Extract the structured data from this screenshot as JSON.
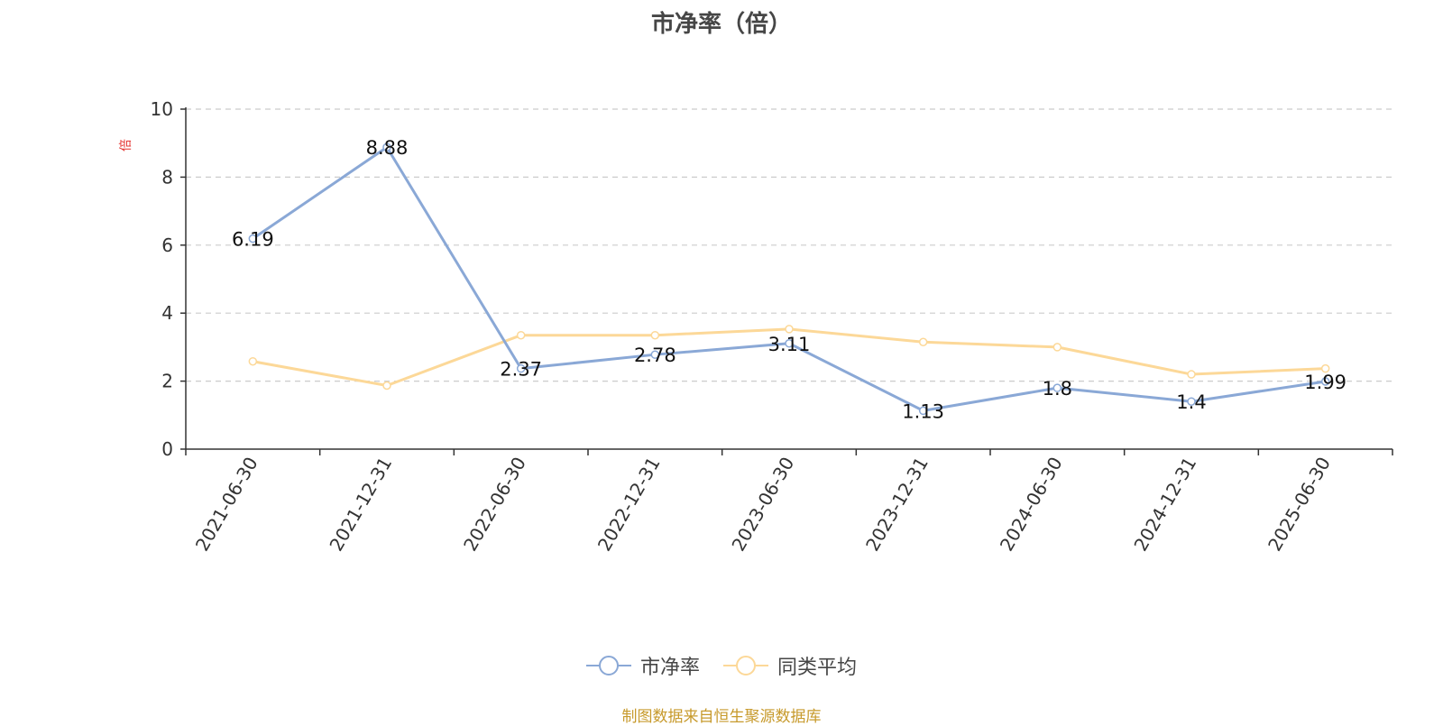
{
  "title": "市净率（倍）",
  "source_note": "制图数据来自恒生聚源数据库",
  "colors": {
    "pb": "#8aa8d6",
    "avg": "#fcd898",
    "axis": "#333333",
    "grid": "#cccccc",
    "ylabel": "#e5312e",
    "source": "#c79a2c"
  },
  "chart_data": {
    "type": "line",
    "ylabel": "倍",
    "ylim": [
      0,
      10
    ],
    "yticks": [
      "0",
      "2",
      "4",
      "6",
      "8",
      "10"
    ],
    "grid": true,
    "legend_position": "bottom",
    "categories": [
      "2021-06-30",
      "2021-12-31",
      "2022-06-30",
      "2022-12-31",
      "2023-06-30",
      "2023-12-31",
      "2024-06-30",
      "2024-12-31",
      "2025-06-30"
    ],
    "series": [
      {
        "name": "市净率",
        "values": [
          6.19,
          8.88,
          2.37,
          2.78,
          3.11,
          1.13,
          1.8,
          1.4,
          1.99
        ],
        "labels": [
          "6.19",
          "8.88",
          "2.37",
          "2.78",
          "3.11",
          "1.13",
          "1.8",
          "1.4",
          "1.99"
        ],
        "color": "#8aa8d6"
      },
      {
        "name": "同类平均",
        "values": [
          2.58,
          1.87,
          3.35,
          3.35,
          3.53,
          3.15,
          3.0,
          2.2,
          2.37
        ],
        "color": "#fcd898"
      }
    ]
  }
}
